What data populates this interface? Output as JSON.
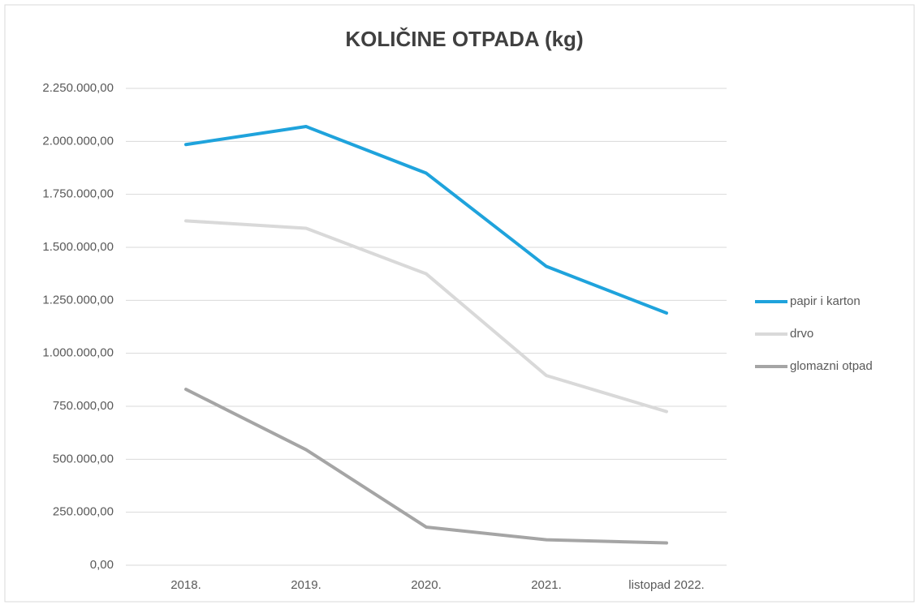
{
  "chart_data": {
    "type": "line",
    "title": "KOLIČINE OTPADA (kg)",
    "categories": [
      "2018.",
      "2019.",
      "2020.",
      "2021.",
      "listopad 2022."
    ],
    "series": [
      {
        "name": "papir i karton",
        "color": "#1fa3dc",
        "values": [
          1985000,
          2070000,
          1850000,
          1410000,
          1190000
        ]
      },
      {
        "name": "drvo",
        "color": "#d9d9d9",
        "values": [
          1625000,
          1590000,
          1375000,
          895000,
          725000
        ]
      },
      {
        "name": "glomazni otpad",
        "color": "#a5a5a5",
        "values": [
          830000,
          545000,
          180000,
          120000,
          105000
        ]
      }
    ],
    "ylim": [
      0,
      2250000
    ],
    "yticks": [
      {
        "value": 0,
        "label": "0,00"
      },
      {
        "value": 250000,
        "label": "250.000,00"
      },
      {
        "value": 500000,
        "label": "500.000,00"
      },
      {
        "value": 750000,
        "label": "750.000,00"
      },
      {
        "value": 1000000,
        "label": "1.000.000,00"
      },
      {
        "value": 1250000,
        "label": "1.250.000,00"
      },
      {
        "value": 1500000,
        "label": "1.500.000,00"
      },
      {
        "value": 1750000,
        "label": "1.750.000,00"
      },
      {
        "value": 2000000,
        "label": "2.000.000,00"
      },
      {
        "value": 2250000,
        "label": "2.250.000,00"
      }
    ],
    "grid": true,
    "legend": "right"
  }
}
